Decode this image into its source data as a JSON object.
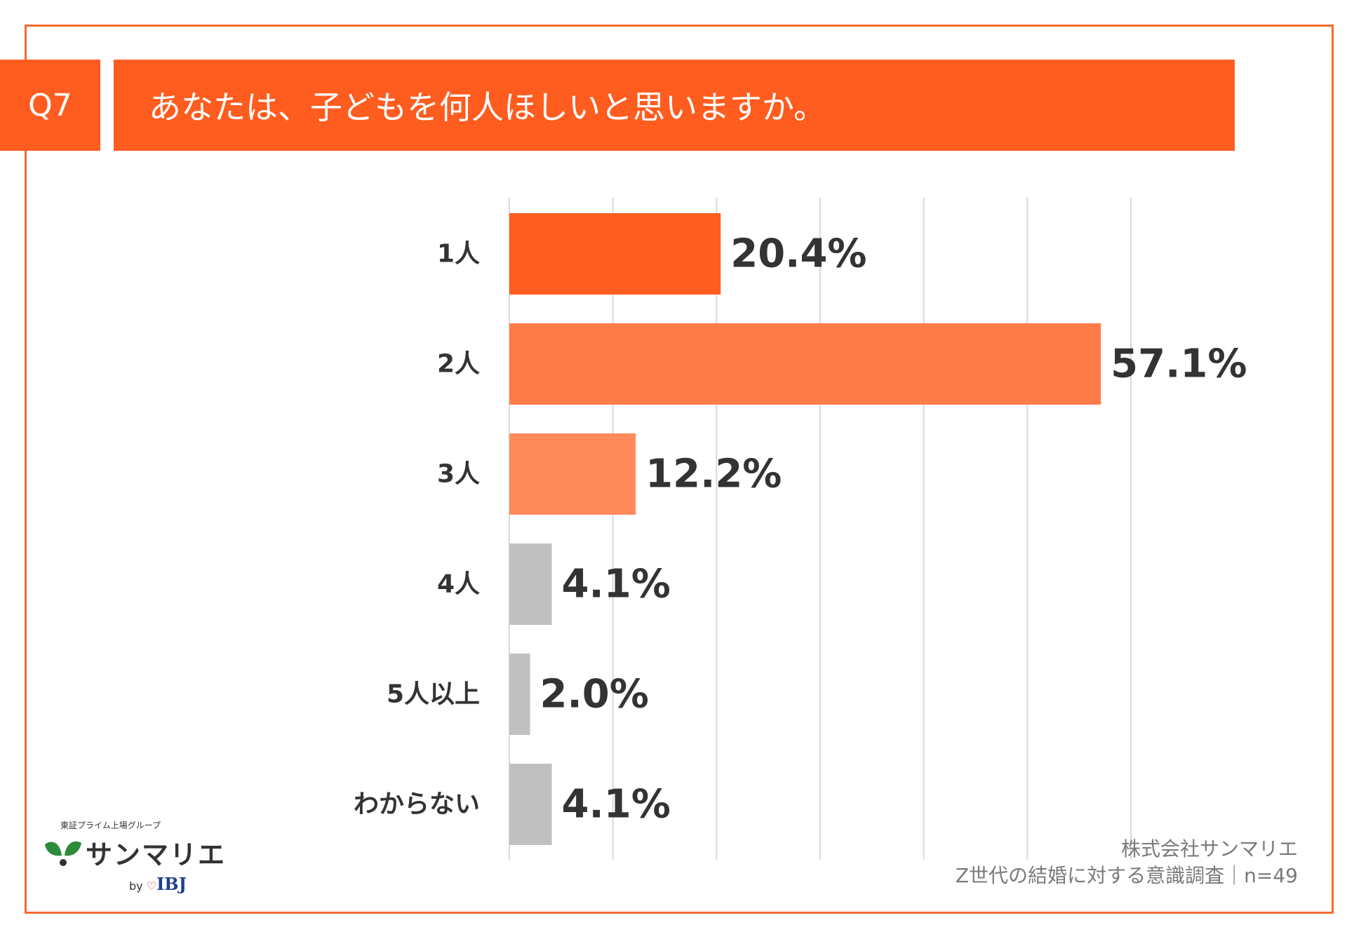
{
  "header": {
    "badge": "Q7",
    "question": "あなたは、子どもを何人ほしいと思いますか。"
  },
  "chart_data": {
    "type": "bar",
    "orientation": "horizontal",
    "categories": [
      "1人",
      "2人",
      "3人",
      "4人",
      "5人以上",
      "わからない"
    ],
    "values": [
      20.4,
      57.1,
      12.2,
      4.1,
      2.0,
      4.1
    ],
    "data_labels": [
      "20.4%",
      "57.1%",
      "12.2%",
      "4.1%",
      "2.0%",
      "4.1%"
    ],
    "bar_colors": [
      "#ff5c1f",
      "#ff7b48",
      "#ff8a5c",
      "#c0c0c0",
      "#c0c0c0",
      "#c0c0c0"
    ],
    "xlim": [
      0,
      60
    ],
    "grid": true,
    "title": "",
    "xlabel": "",
    "ylabel": ""
  },
  "logo": {
    "tagline": "東証プライム上場グループ",
    "name": "サンマリエ",
    "by": "by",
    "partner": "IBJ"
  },
  "footer": {
    "company": "株式会社サンマリエ",
    "survey": "Z世代の結婚に対する意識調査｜n=49"
  },
  "colors": {
    "accent": "#ff5c1f",
    "frame": "#f26a2e"
  }
}
